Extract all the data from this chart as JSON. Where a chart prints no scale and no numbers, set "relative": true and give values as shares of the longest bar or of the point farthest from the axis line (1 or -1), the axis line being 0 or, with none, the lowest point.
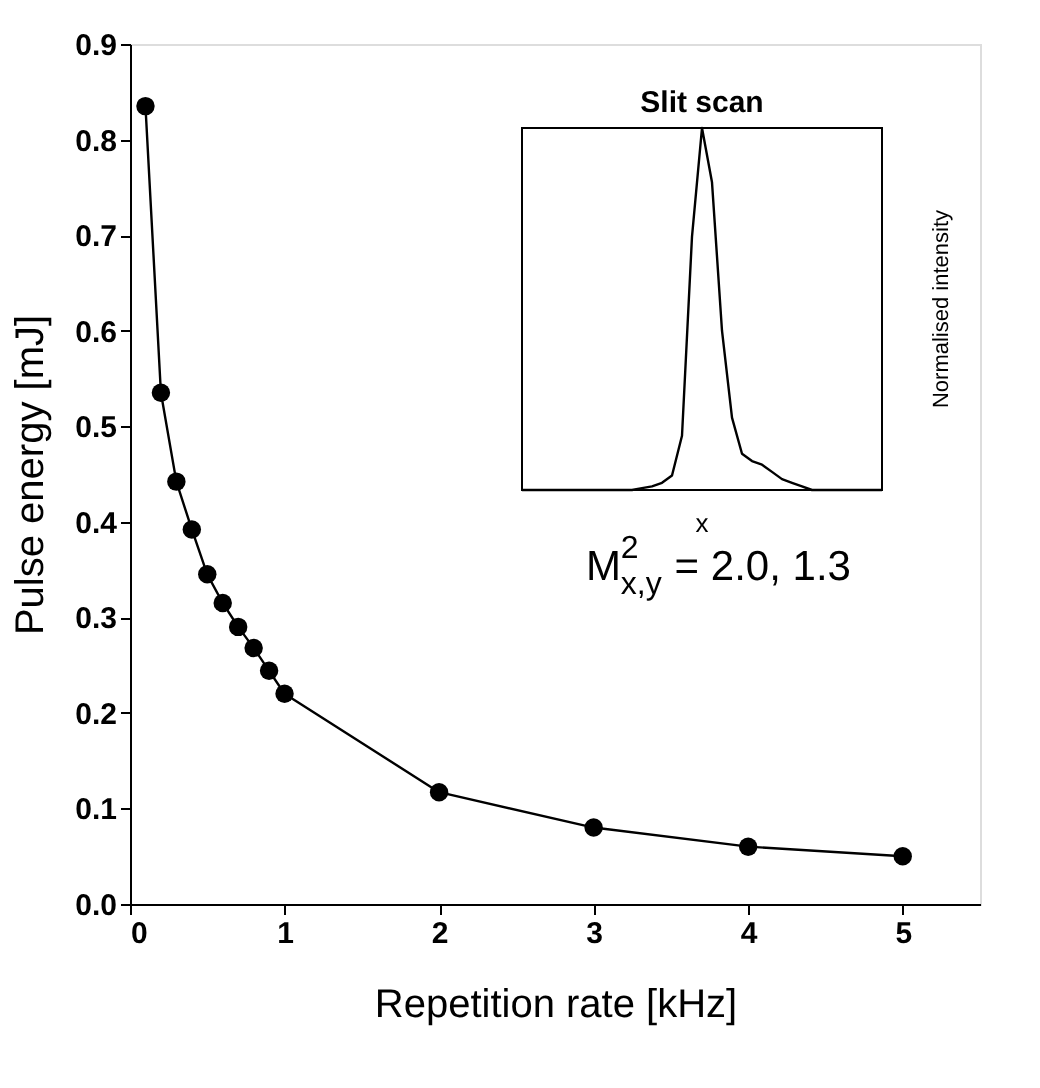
{
  "chart_data": [
    {
      "type": "line",
      "xlabel": "Repetition rate [kHz]",
      "ylabel": "Pulse energy [mJ]",
      "x": [
        0.1,
        0.2,
        0.3,
        0.4,
        0.5,
        0.6,
        0.7,
        0.8,
        0.9,
        1.0,
        2,
        3,
        4,
        5
      ],
      "series": [
        {
          "color": "#000000",
          "values": [
            0.835,
            0.535,
            0.442,
            0.392,
            0.345,
            0.315,
            0.29,
            0.268,
            0.244,
            0.22,
            0.117,
            0.08,
            0.06,
            0.05
          ]
        }
      ],
      "xlim": [
        0,
        5.5
      ],
      "xticks": [
        0,
        1,
        2,
        3,
        4,
        5
      ],
      "ylim": [
        0,
        0.9
      ],
      "yticks": [
        {
          "value": 0,
          "label": "0.0"
        },
        {
          "value": 0.1,
          "label": "0.1"
        },
        {
          "value": 0.2,
          "label": "0.2"
        },
        {
          "value": 0.3,
          "label": "0.3"
        },
        {
          "value": 0.4,
          "label": "0.4"
        },
        {
          "value": 0.5,
          "label": "0.5"
        },
        {
          "value": 0.6,
          "label": "0.6"
        },
        {
          "value": 0.7,
          "label": "0.7"
        },
        {
          "value": 0.8,
          "label": "0.8"
        },
        {
          "value": 0.9,
          "label": "0.9"
        }
      ],
      "marker": "circle",
      "line_style": "solid",
      "grid": false,
      "annotations": [
        "M$^{2}$$_{x,y}$ = 2.0, 1.3"
      ]
    },
    {
      "type": "line",
      "title": "Slit scan",
      "xlabel": "x",
      "ylabel": "Normalised intensity",
      "relative": true,
      "categories": [
        null,
        null,
        null,
        null,
        null,
        null,
        null,
        null,
        null,
        null,
        null,
        null,
        null,
        null,
        null,
        null,
        null,
        null,
        null,
        null,
        null,
        null,
        null,
        null,
        null,
        null,
        null,
        null,
        null,
        null,
        null,
        null,
        null,
        null,
        null,
        null,
        null
      ],
      "series": [
        {
          "color": "#000000",
          "values": [
            0,
            0,
            0,
            0,
            0,
            0,
            0,
            0,
            0,
            0,
            0,
            0,
            0.005,
            0.01,
            0.02,
            0.04,
            0.15,
            0.7,
            1.0,
            0.85,
            0.44,
            0.2,
            0.1,
            0.08,
            0.07,
            0.05,
            0.03,
            0.02,
            0.01,
            0,
            0,
            0,
            0,
            0,
            0,
            0,
            0
          ]
        }
      ],
      "marker": "none",
      "line_style": "solid"
    }
  ]
}
